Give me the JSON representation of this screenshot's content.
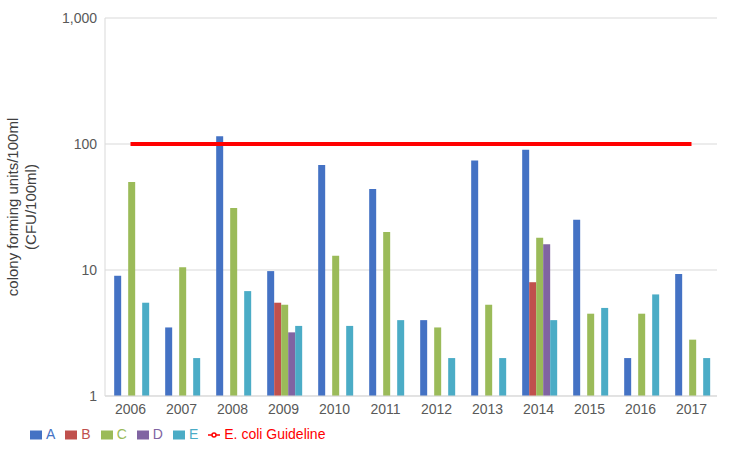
{
  "chart_data": {
    "type": "bar",
    "y_label": "colony forming units/100ml\n(CFU/100ml)",
    "categories": [
      "2006",
      "2007",
      "2008",
      "2009",
      "2010",
      "2011",
      "2012",
      "2013",
      "2014",
      "2015",
      "2016",
      "2017"
    ],
    "series": [
      {
        "name": "A",
        "color": "#4472c4",
        "values": [
          9,
          3.5,
          115,
          9.8,
          68,
          44,
          4,
          74,
          90,
          25,
          2,
          9.3
        ]
      },
      {
        "name": "B",
        "color": "#c0504d",
        "values": [
          null,
          null,
          null,
          5.5,
          null,
          null,
          null,
          null,
          8,
          null,
          null,
          null
        ]
      },
      {
        "name": "C",
        "color": "#9bbb59",
        "values": [
          50,
          10.5,
          31,
          5.3,
          13,
          20,
          3.5,
          5.3,
          18,
          4.5,
          4.5,
          2.8
        ]
      },
      {
        "name": "D",
        "color": "#8064a2",
        "values": [
          null,
          null,
          null,
          3.2,
          null,
          null,
          null,
          null,
          16,
          null,
          null,
          null
        ]
      },
      {
        "name": "E",
        "color": "#4bacc6",
        "values": [
          5.5,
          2,
          6.8,
          3.6,
          3.6,
          4,
          2,
          2,
          4,
          5,
          6.4,
          2
        ]
      },
      {
        "name": "E. coli Guideline",
        "type": "line",
        "color": "#ff0000",
        "values": [
          100,
          100,
          100,
          100,
          100,
          100,
          100,
          100,
          100,
          100,
          100,
          100
        ]
      }
    ],
    "ylim": [
      1,
      1000
    ],
    "yticks": [
      1,
      10,
      100,
      {
        "value": 1000,
        "label": "1,000"
      }
    ],
    "log": "y",
    "grid": true,
    "legend": "bottom"
  }
}
